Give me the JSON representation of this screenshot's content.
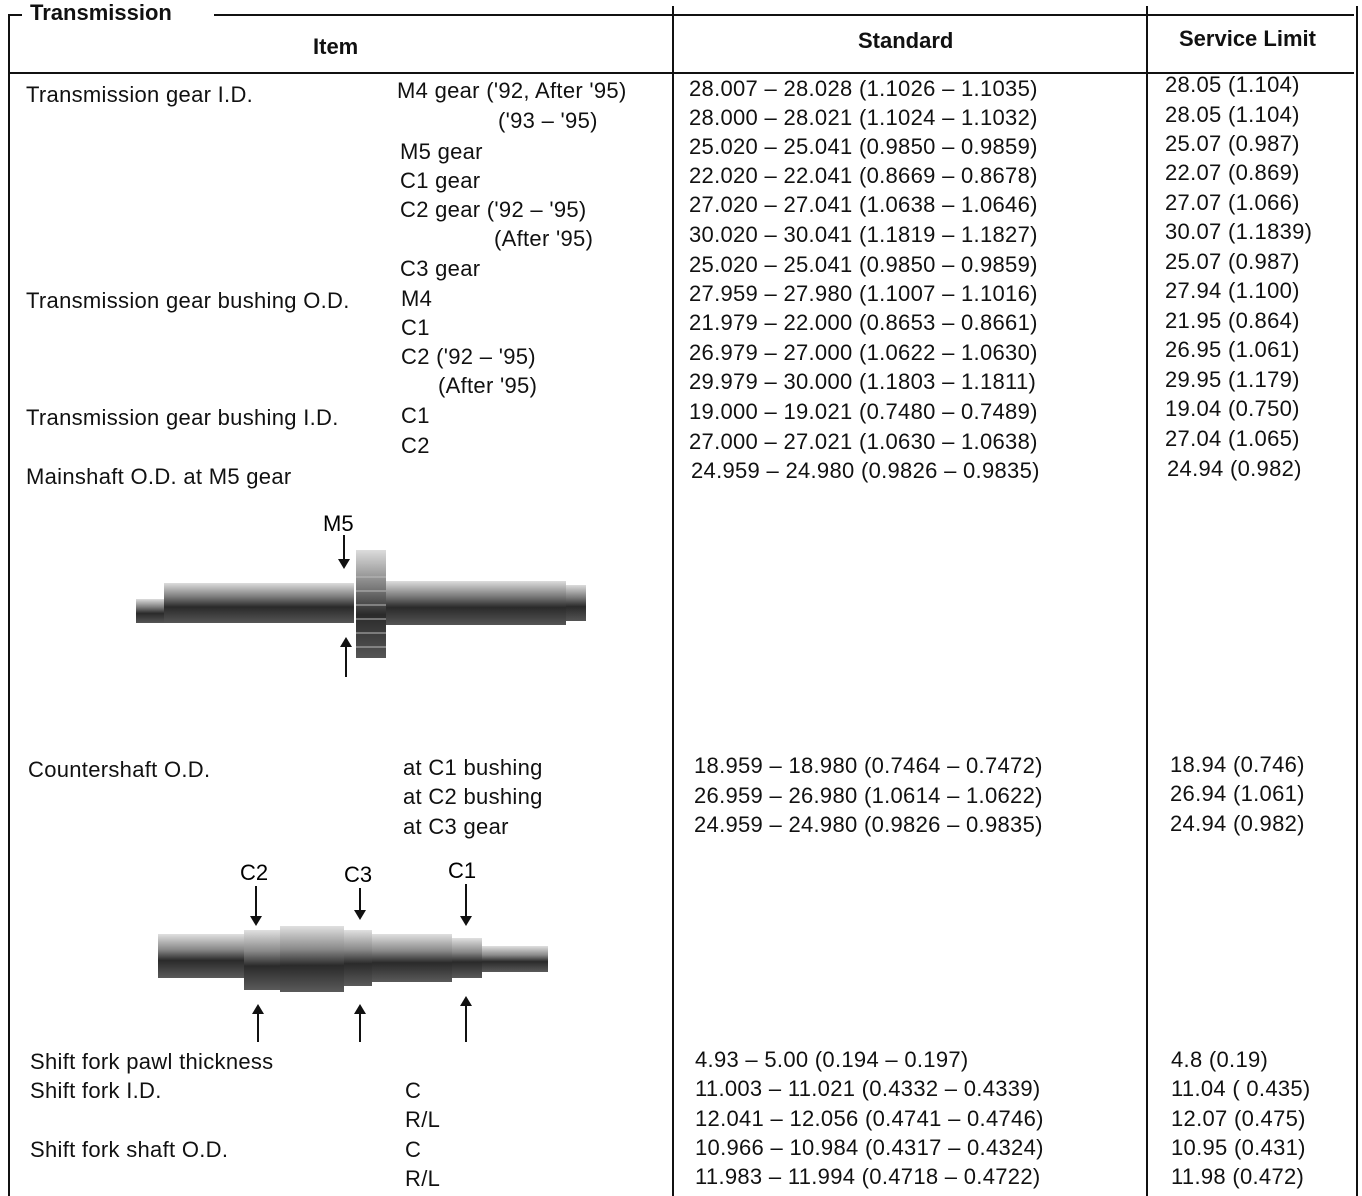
{
  "section_title": "Transmission",
  "headers": {
    "item": "Item",
    "standard": "Standard",
    "service_limit": "Service Limit"
  },
  "rows": [
    {
      "item": "Transmission gear I.D.",
      "sub": "M4 gear ('92, After '95)",
      "std": "28.007 – 28.028 (1.1026 – 1.1035)",
      "lim": "28.05 (1.104)"
    },
    {
      "item": "",
      "sub": "('93 – '95)",
      "std": "28.000 – 28.021 (1.1024 – 1.1032)",
      "lim": "28.05 (1.104)"
    },
    {
      "item": "",
      "sub": "M5 gear",
      "std": "25.020 – 25.041 (0.9850 – 0.9859)",
      "lim": "25.07 (0.987)"
    },
    {
      "item": "",
      "sub": "C1 gear",
      "std": "22.020 – 22.041 (0.8669 – 0.8678)",
      "lim": "22.07 (0.869)"
    },
    {
      "item": "",
      "sub": "C2 gear ('92 – '95)",
      "std": "27.020 – 27.041 (1.0638 – 1.0646)",
      "lim": "27.07 (1.066)"
    },
    {
      "item": "",
      "sub": "(After '95)",
      "std": "30.020 – 30.041 (1.1819 – 1.1827)",
      "lim": "30.07 (1.1839)"
    },
    {
      "item": "",
      "sub": "C3 gear",
      "std": "25.020 – 25.041 (0.9850 – 0.9859)",
      "lim": "25.07 (0.987)"
    },
    {
      "item": "Transmission gear bushing O.D.",
      "sub": "M4",
      "std": "27.959 – 27.980 (1.1007 – 1.1016)",
      "lim": "27.94 (1.100)"
    },
    {
      "item": "",
      "sub": "C1",
      "std": "21.979 – 22.000 (0.8653 – 0.8661)",
      "lim": "21.95 (0.864)"
    },
    {
      "item": "",
      "sub": "C2 ('92 – '95)",
      "std": "26.979 – 27.000 (1.0622 – 1.0630)",
      "lim": "26.95 (1.061)"
    },
    {
      "item": "",
      "sub": "(After '95)",
      "std": "29.979 – 30.000 (1.1803 – 1.1811)",
      "lim": "29.95 (1.179)"
    },
    {
      "item": "Transmission gear bushing I.D.",
      "sub": "C1",
      "std": "19.000 – 19.021 (0.7480 – 0.7489)",
      "lim": "19.04 (0.750)"
    },
    {
      "item": "",
      "sub": "C2",
      "std": "27.000 – 27.021 (1.0630 – 1.0638)",
      "lim": "27.04 (1.065)"
    },
    {
      "item": "Mainshaft O.D. at M5 gear",
      "sub": "",
      "std": "24.959 – 24.980 (0.9826 – 0.9835)",
      "lim": "24.94 (0.982)"
    },
    {
      "item": "Countershaft O.D.",
      "sub": "at C1 bushing",
      "std": "18.959 – 18.980 (0.7464 – 0.7472)",
      "lim": "18.94 (0.746)"
    },
    {
      "item": "",
      "sub": "at C2 bushing",
      "std": "26.959 – 26.980 (1.0614 – 1.0622)",
      "lim": "26.94 (1.061)"
    },
    {
      "item": "",
      "sub": "at C3 gear",
      "std": "24.959 – 24.980 (0.9826 – 0.9835)",
      "lim": "24.94 (0.982)"
    },
    {
      "item": "Shift fork pawl thickness",
      "sub": "",
      "std": "4.93 – 5.00 (0.194 – 0.197)",
      "lim": "4.8 (0.19)"
    },
    {
      "item": "Shift fork I.D.",
      "sub": "C",
      "std": "11.003 – 11.021 (0.4332 – 0.4339)",
      "lim": "11.04 ( 0.435)"
    },
    {
      "item": "",
      "sub": "R/L",
      "std": "12.041 – 12.056 (0.4741 – 0.4746)",
      "lim": "12.07 (0.475)"
    },
    {
      "item": "Shift fork shaft O.D.",
      "sub": "C",
      "std": "10.966 – 10.984 (0.4317 – 0.4324)",
      "lim": "10.95 (0.431)"
    },
    {
      "item": "",
      "sub": "R/L",
      "std": "11.983 – 11.994 (0.4718 – 0.4722)",
      "lim": "11.98 (0.472)"
    }
  ],
  "figures": {
    "mainshaft_label": "M5",
    "countershaft_labels": {
      "c2": "C2",
      "c3": "C3",
      "c1": "C1"
    }
  }
}
